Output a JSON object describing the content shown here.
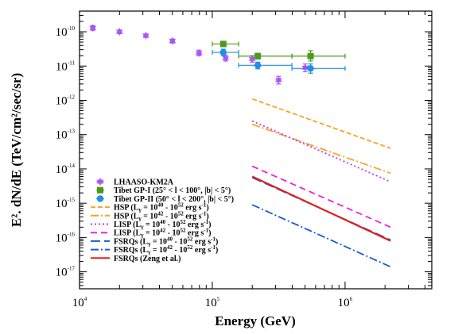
{
  "chart_data": {
    "type": "scatter",
    "xlabel": "Energy (GeV)",
    "ylabel": "E². dN/dE (TeV/cm²/sec/sr)",
    "x_scale": "log",
    "y_scale": "log",
    "xlim": [
      10000,
      4500000
    ],
    "ylim": [
      3.2e-18,
      4e-10
    ],
    "x_ticks": [
      {
        "value": 10000,
        "base": "10",
        "exp": "4"
      },
      {
        "value": 100000,
        "base": "10",
        "exp": "5"
      },
      {
        "value": 1000000,
        "base": "10",
        "exp": "6"
      }
    ],
    "y_ticks": [
      {
        "value": 1e-17,
        "base": "10",
        "exp": "-17"
      },
      {
        "value": 1e-16,
        "base": "10",
        "exp": "-16"
      },
      {
        "value": 1e-15,
        "base": "10",
        "exp": "-15"
      },
      {
        "value": 1e-14,
        "base": "10",
        "exp": "-14"
      },
      {
        "value": 1e-13,
        "base": "10",
        "exp": "-13"
      },
      {
        "value": 1e-12,
        "base": "10",
        "exp": "-12"
      },
      {
        "value": 1e-11,
        "base": "10",
        "exp": "-11"
      },
      {
        "value": 1e-10,
        "base": "10",
        "exp": "-10"
      }
    ],
    "grid": false,
    "legend_position": "center-left",
    "points": [
      {
        "name": "LHAASO-KM2A",
        "color": "#a855f7",
        "marker": "star",
        "data": [
          {
            "x": 12600,
            "y": 1.3e-10,
            "ylo": 1.1e-10,
            "yhi": 1.5e-10
          },
          {
            "x": 20000,
            "y": 1e-10,
            "ylo": 8.8e-11,
            "yhi": 1.12e-10
          },
          {
            "x": 31600,
            "y": 7.7e-11,
            "ylo": 6.9e-11,
            "yhi": 8.6e-11
          },
          {
            "x": 50100,
            "y": 5.4e-11,
            "ylo": 4.7e-11,
            "yhi": 6.1e-11
          },
          {
            "x": 79400,
            "y": 2.4e-11,
            "ylo": 2e-11,
            "yhi": 2.9e-11
          },
          {
            "x": 126000,
            "y": 1.7e-11,
            "ylo": 1.4e-11,
            "yhi": 2.1e-11
          },
          {
            "x": 200000,
            "y": 1.6e-11,
            "ylo": 1.3e-11,
            "yhi": 2e-11
          },
          {
            "x": 316000,
            "y": 3.9e-12,
            "ylo": 3e-12,
            "yhi": 5e-12
          },
          {
            "x": 501000,
            "y": 9e-12,
            "ylo": 6.8e-12,
            "yhi": 1.15e-11
          }
        ]
      },
      {
        "name": "Tibet GP-I (25° < l < 100°, |b| < 5°)",
        "color": "#4d9a1a",
        "marker": "square",
        "data": [
          {
            "x": 121000,
            "y": 4.4e-11,
            "xlo": 100000,
            "xhi": 158000,
            "ylo": 3.7e-11,
            "yhi": 5.2e-11
          },
          {
            "x": 220000,
            "y": 1.95e-11,
            "xlo": 158000,
            "xhi": 398000,
            "ylo": 1.6e-11,
            "yhi": 2.35e-11
          },
          {
            "x": 550000,
            "y": 1.95e-11,
            "xlo": 398000,
            "xhi": 1000000,
            "ylo": 1.4e-11,
            "yhi": 2.8e-11
          }
        ]
      },
      {
        "name": "Tibet GP-II (50° < l < 200°, |b| < 5°)",
        "color": "#1e8ee8",
        "marker": "circle",
        "data": [
          {
            "x": 121000,
            "y": 2.5e-11,
            "xlo": 100000,
            "xhi": 158000,
            "ylo": 2e-11,
            "yhi": 3.1e-11
          },
          {
            "x": 220000,
            "y": 1.05e-11,
            "xlo": 158000,
            "xhi": 398000,
            "ylo": 8.3e-12,
            "yhi": 1.3e-11
          },
          {
            "x": 550000,
            "y": 8.5e-12,
            "xlo": 398000,
            "xhi": 1000000,
            "ylo": 6.2e-12,
            "yhi": 1.15e-11
          }
        ]
      }
    ],
    "series": [
      {
        "name": "HSP",
        "label_range": "10^40 - 10^52",
        "color": "#f5a623",
        "dash": "6,3",
        "x": [
          200000,
          2200000
        ],
        "y": [
          1.1e-12,
          4e-14
        ]
      },
      {
        "name": "HSP",
        "label_range": "10^42 - 10^52",
        "color": "#f5a623",
        "dash": "10,3,2,3",
        "x": [
          200000,
          2200000
        ],
        "y": [
          2e-13,
          7.5e-15
        ]
      },
      {
        "name": "LISP",
        "label_range": "10^40 - 10^52",
        "color": "#cc33ee",
        "dash": "2,3",
        "x": [
          200000,
          2200000
        ],
        "y": [
          2.5e-13,
          4.2e-15
        ]
      },
      {
        "name": "LISP",
        "label_range": "10^42 - 10^52",
        "color": "#ee22dd",
        "dash": "8,5",
        "x": [
          200000,
          2200000
        ],
        "y": [
          1.2e-14,
          2e-16
        ]
      },
      {
        "name": "FSRQs",
        "label_range": "10^40 - 10^52",
        "color": "#1a5ad8",
        "dash": "12,5",
        "x": [
          200000,
          2200000
        ],
        "y": [
          5.6e-15,
          8.5e-17
        ]
      },
      {
        "name": "FSRQs",
        "label_range": "10^42 - 10^52",
        "color": "#1a5ad8",
        "dash": "10,3,2,3",
        "x": [
          200000,
          2200000
        ],
        "y": [
          9e-16,
          1.4e-17
        ]
      },
      {
        "name": "FSRQs (Zeng et al.)",
        "color": "#e02020",
        "dash": "",
        "x": [
          200000,
          2200000
        ],
        "y": [
          6e-15,
          8e-17
        ]
      }
    ],
    "legend_unit_text": "erg s",
    "legend_unit_exp": "-1",
    "legend_lum_symbol": "L",
    "legend_lum_sub": "γ",
    "legend_eq": " = "
  }
}
